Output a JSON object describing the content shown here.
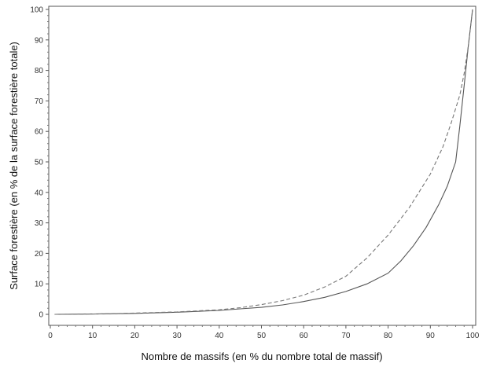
{
  "chart_data": {
    "type": "line",
    "title": "",
    "xlabel": "Nombre de massifs (en % du nombre total de massif)",
    "ylabel": "Surface forestière (en % de la surface forestière totale)",
    "xlim": [
      0,
      100
    ],
    "ylim": [
      0,
      100
    ],
    "xticks": [
      0,
      10,
      20,
      30,
      40,
      50,
      60,
      70,
      80,
      90,
      100
    ],
    "yticks": [
      0,
      10,
      20,
      30,
      40,
      50,
      60,
      70,
      80,
      90,
      100
    ],
    "grid": false,
    "legend": "none",
    "series": [
      {
        "style": "solid",
        "color": "#555555",
        "x": [
          1,
          10,
          20,
          30,
          40,
          45,
          50,
          55,
          60,
          65,
          70,
          75,
          80,
          83,
          86,
          89,
          92,
          94,
          96,
          97,
          98,
          99,
          100
        ],
        "y": [
          0,
          0.1,
          0.3,
          0.7,
          1.3,
          1.8,
          2.3,
          3.1,
          4.2,
          5.6,
          7.5,
          10,
          13.5,
          17.5,
          22.5,
          28.5,
          36,
          42,
          50,
          62,
          75,
          88,
          100
        ]
      },
      {
        "style": "dashed",
        "color": "#777777",
        "x": [
          1,
          10,
          20,
          30,
          40,
          45,
          50,
          55,
          60,
          65,
          70,
          75,
          80,
          85,
          90,
          93,
          95,
          97,
          98,
          99,
          100
        ],
        "y": [
          0,
          0.1,
          0.4,
          0.8,
          1.5,
          2.2,
          3.2,
          4.5,
          6.3,
          9,
          12.5,
          18.5,
          26,
          35,
          46,
          55,
          63,
          72,
          79,
          88,
          100
        ]
      }
    ]
  }
}
